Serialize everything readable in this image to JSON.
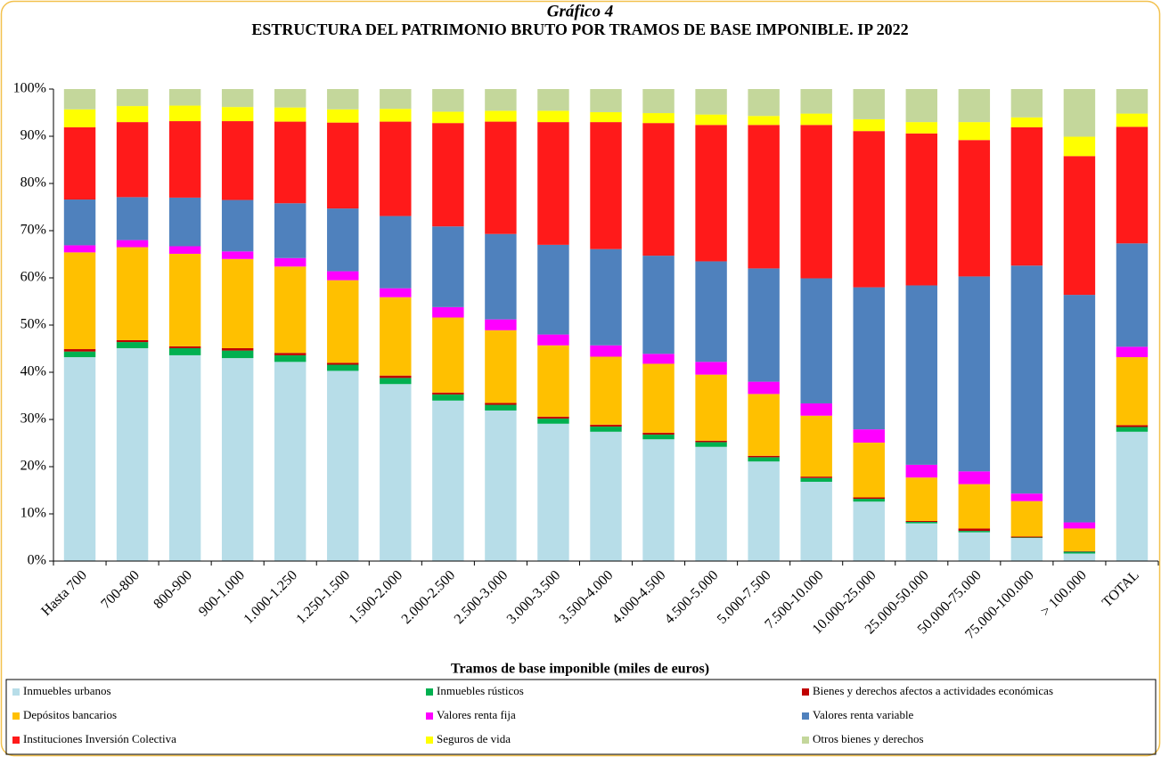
{
  "chart_data": {
    "type": "stacked_bar",
    "title": "Gráfico 4",
    "subtitle": "ESTRUCTURA DEL PATRIMONIO BRUTO POR TRAMOS DE BASE IMPONIBLE. IP 2022",
    "x_label": "Tramos de base imponible (miles de euros)",
    "categories": [
      "Hasta 700",
      "700-800",
      "800-900",
      "900-1.000",
      "1.000-1.250",
      "1.250-1.500",
      "1.500-2.000",
      "2.000-2.500",
      "2.500-3.000",
      "3.000-3.500",
      "3.500-4.000",
      "4.000-4.500",
      "4.500-5.000",
      "5.000-7.500",
      "7.500-10.000",
      "10.000-25.000",
      "25.000-50.000",
      "50.000-75.000",
      "75.000-100.000",
      "> 100.000",
      "TOTAL"
    ],
    "series": [
      {
        "name": "Inmuebles urbanos",
        "color": "#b7dde8",
        "values": [
          43.2,
          45.1,
          43.6,
          43.0,
          42.2,
          40.3,
          37.5,
          34.0,
          31.9,
          29.1,
          27.4,
          25.8,
          24.2,
          21.1,
          16.8,
          12.6,
          8.0,
          6.1,
          4.9,
          1.6,
          27.4
        ]
      },
      {
        "name": "Inmuebles rústicos",
        "color": "#00b050",
        "values": [
          1.2,
          1.3,
          1.5,
          1.6,
          1.4,
          1.3,
          1.3,
          1.3,
          1.2,
          1.1,
          1.1,
          1.0,
          1.0,
          0.9,
          0.8,
          0.6,
          0.3,
          0.3,
          0.1,
          0.4,
          1.0
        ]
      },
      {
        "name": "Bienes y derechos afectos a actividades económicas",
        "color": "#c00000",
        "values": [
          0.5,
          0.4,
          0.4,
          0.5,
          0.5,
          0.4,
          0.5,
          0.4,
          0.4,
          0.4,
          0.4,
          0.4,
          0.3,
          0.3,
          0.3,
          0.3,
          0.2,
          0.5,
          0.2,
          0.1,
          0.4
        ]
      },
      {
        "name": "Depósitos bancarios",
        "color": "#ffc000",
        "values": [
          20.5,
          19.7,
          19.6,
          18.9,
          18.3,
          17.5,
          16.6,
          15.9,
          15.4,
          15.1,
          14.4,
          14.6,
          14.0,
          13.1,
          12.9,
          11.6,
          9.2,
          9.4,
          7.5,
          4.8,
          14.4
        ]
      },
      {
        "name": "Valores renta fija",
        "color": "#ff00ff",
        "values": [
          1.5,
          1.5,
          1.6,
          1.6,
          1.8,
          1.9,
          1.9,
          2.2,
          2.3,
          2.3,
          2.4,
          2.1,
          2.7,
          2.6,
          2.6,
          2.8,
          2.7,
          2.7,
          1.6,
          1.3,
          2.2
        ]
      },
      {
        "name": "Valores renta variable",
        "color": "#4f81bd",
        "values": [
          9.7,
          9.1,
          10.3,
          10.9,
          11.6,
          13.3,
          15.3,
          17.1,
          18.1,
          19.0,
          20.4,
          20.8,
          21.3,
          24.0,
          26.5,
          30.1,
          38.0,
          41.3,
          48.3,
          48.2,
          21.9
        ]
      },
      {
        "name": "Instituciones Inversión Colectiva",
        "color": "#ff1a1a",
        "values": [
          15.3,
          15.9,
          16.2,
          16.7,
          17.3,
          18.2,
          20.0,
          21.9,
          23.8,
          26.0,
          26.9,
          28.1,
          28.9,
          30.4,
          32.5,
          33.1,
          32.2,
          28.9,
          29.3,
          29.4,
          24.7
        ]
      },
      {
        "name": "Seguros de vida",
        "color": "#ffff00",
        "values": [
          3.8,
          3.4,
          3.3,
          3.0,
          3.0,
          2.8,
          2.7,
          2.4,
          2.3,
          2.4,
          2.1,
          2.1,
          2.2,
          1.9,
          2.4,
          2.5,
          2.4,
          3.8,
          2.1,
          4.1,
          2.8
        ]
      },
      {
        "name": "Otros bienes y derechos",
        "color": "#c4d79b",
        "values": [
          4.3,
          3.6,
          3.5,
          3.8,
          3.9,
          4.3,
          4.2,
          4.8,
          4.6,
          4.6,
          4.9,
          5.1,
          5.4,
          5.7,
          5.2,
          6.4,
          7.0,
          7.0,
          6.0,
          10.1,
          5.2
        ]
      }
    ],
    "ylim": [
      0,
      100
    ],
    "yticks": [
      {
        "value": 0,
        "label": "0%"
      },
      {
        "value": 10,
        "label": "10%"
      },
      {
        "value": 20,
        "label": "20%"
      },
      {
        "value": 30,
        "label": "30%"
      },
      {
        "value": 40,
        "label": "40%"
      },
      {
        "value": 50,
        "label": "50%"
      },
      {
        "value": 60,
        "label": "60%"
      },
      {
        "value": 70,
        "label": "70%"
      },
      {
        "value": 80,
        "label": "80%"
      },
      {
        "value": 90,
        "label": "90%"
      },
      {
        "value": 100,
        "label": "100%"
      }
    ],
    "grid": false,
    "legend": "bottom"
  }
}
